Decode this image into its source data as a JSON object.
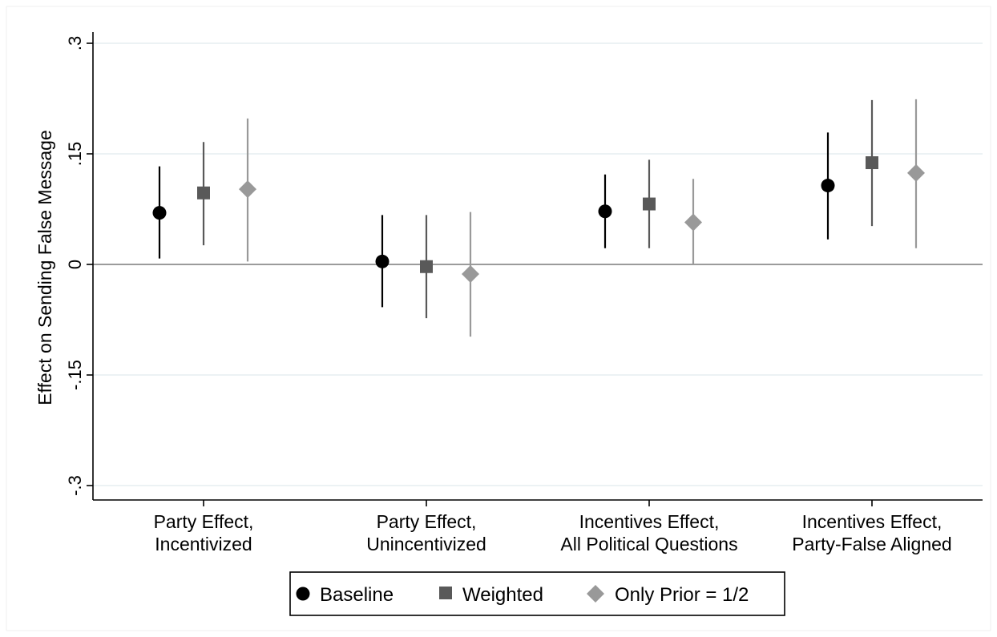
{
  "chart_data": {
    "type": "scatter",
    "ylabel": "Effect on Sending False Message",
    "xlabel": "",
    "ylim": [
      -0.3,
      0.3
    ],
    "yticks": [
      ".3",
      ".15",
      "0",
      "-.15",
      "-.3"
    ],
    "ytick_values": [
      0.3,
      0.15,
      0,
      -0.15,
      -0.3
    ],
    "grid": true,
    "reference_line": 0,
    "categories": [
      [
        "Party Effect,",
        "Incentivized"
      ],
      [
        "Party Effect,",
        "Unincentivized"
      ],
      [
        "Incentives Effect,",
        "All Political Questions"
      ],
      [
        "Incentives Effect,",
        "Party-False Aligned"
      ]
    ],
    "series": [
      {
        "name": "Baseline",
        "marker": "circle",
        "color": "#000000",
        "values": [
          0.07,
          0.004,
          0.072,
          0.107
        ],
        "ci_low": [
          0.008,
          -0.058,
          0.022,
          0.034
        ],
        "ci_high": [
          0.133,
          0.067,
          0.122,
          0.179
        ]
      },
      {
        "name": "Weighted",
        "marker": "square",
        "color": "#595959",
        "values": [
          0.097,
          -0.003,
          0.082,
          0.138
        ],
        "ci_low": [
          0.026,
          -0.073,
          0.022,
          0.052
        ],
        "ci_high": [
          0.166,
          0.067,
          0.142,
          0.223
        ]
      },
      {
        "name": "Only Prior = 1/2",
        "marker": "diamond",
        "color": "#999999",
        "values": [
          0.102,
          -0.013,
          0.057,
          0.124
        ],
        "ci_low": [
          0.004,
          -0.098,
          0.0,
          0.022
        ],
        "ci_high": [
          0.198,
          0.071,
          0.116,
          0.224
        ]
      }
    ],
    "legend": {
      "position": "bottom",
      "entries": [
        "Baseline",
        "Weighted",
        "Only Prior = 1/2"
      ]
    }
  }
}
